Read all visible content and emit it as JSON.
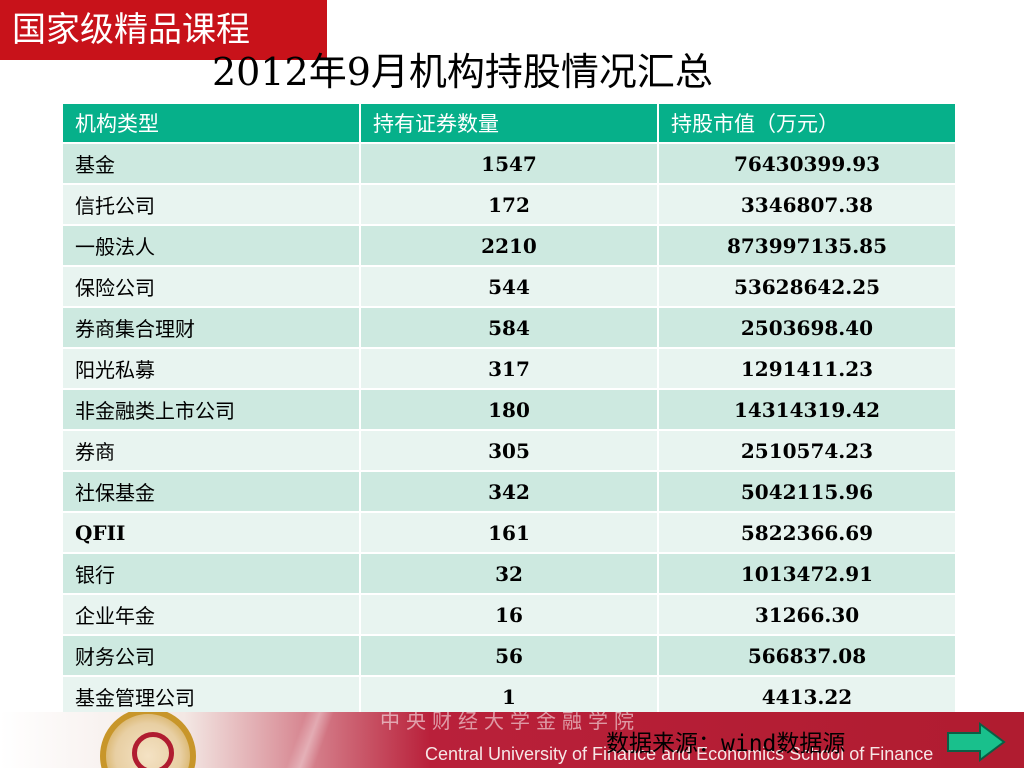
{
  "badge": "国家级精品课程",
  "title": "2012年9月机构持股情况汇总",
  "table": {
    "headers": [
      "机构类型",
      "持有证券数量",
      "持股市值（万元）"
    ],
    "rows": [
      [
        "基金",
        "1547",
        "76430399.93"
      ],
      [
        "信托公司",
        "172",
        "3346807.38"
      ],
      [
        "一般法人",
        "2210",
        "873997135.85"
      ],
      [
        "保险公司",
        "544",
        "53628642.25"
      ],
      [
        "券商集合理财",
        "584",
        "2503698.40"
      ],
      [
        "阳光私募",
        "317",
        "1291411.23"
      ],
      [
        "非金融类上市公司",
        "180",
        "14314319.42"
      ],
      [
        "券商",
        "305",
        "2510574.23"
      ],
      [
        "社保基金",
        "342",
        "5042115.96"
      ],
      [
        "QFII",
        "161",
        "5822366.69"
      ],
      [
        "银行",
        "32",
        "1013472.91"
      ],
      [
        "企业年金",
        "16",
        "31266.30"
      ],
      [
        "财务公司",
        "56",
        "566837.08"
      ],
      [
        "基金管理公司",
        "1",
        "4413.22"
      ]
    ]
  },
  "footer": {
    "cn_text": "中央财经大学金融学院",
    "en_text": "Central University of Finance and Economics  School of Finance"
  },
  "source_note": "数据来源：wind数据源",
  "next_icon": "arrow-right-icon",
  "colors": {
    "badge_bg": "#c8121a",
    "header_bg": "#06b08a",
    "row_odd": "#cde9e0",
    "row_even": "#e8f4f0",
    "footer_red": "#b01c30",
    "next_button": "#19c08c"
  }
}
